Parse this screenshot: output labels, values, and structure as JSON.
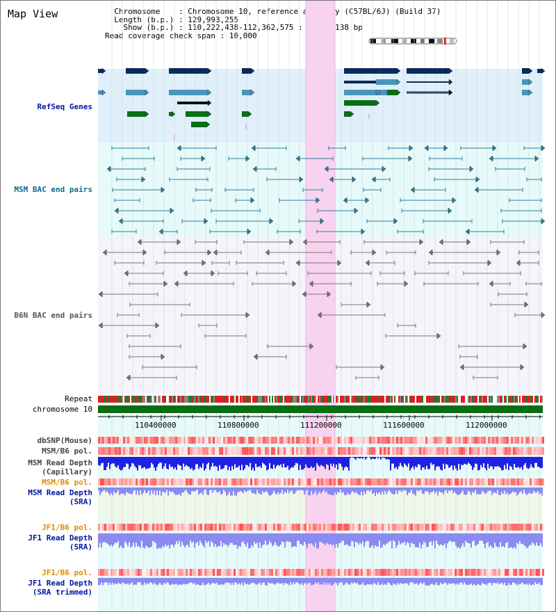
{
  "title": "Map View",
  "info": {
    "chromosome_key": "Chromosome",
    "chromosome_val": "Chromosome 10, reference assembly (C57BL/6J) (Build 37)",
    "length_key": "Length (b.p.)",
    "length_val": "129,993,255",
    "show_key": "Show (b.p.)",
    "show_val": "110,222,438-112,362,575 : 2,140,138 bp",
    "span_key": "Read coverage check span",
    "span_val": "10,000"
  },
  "tracks": {
    "refseq": "RefSeq Genes",
    "msm_bac": "MSM BAC end pairs",
    "b6n_bac": "B6N BAC end pairs",
    "repeat": "Repeat",
    "chromosome": "chromosome 10",
    "dbsnp": "dbSNP(Mouse)",
    "msm_b6_pol_1": "MSM/B6 pol.",
    "msm_depth_cap_1": "MSM Read Depth",
    "msm_depth_cap_2": "(Capillary)",
    "msm_b6_pol_2": "MSM/B6 pol.",
    "msm_depth_sra_1": "MSM Read Depth",
    "msm_depth_sra_2": "(SRA)",
    "jf1_pol_1": "JF1/B6 pol.",
    "jf1_depth_sra_1": "JF1 Read Depth",
    "jf1_depth_sra_2": "(SRA)",
    "jf1_pol_2": "JF1/B6 pol.",
    "jf1_depth_trim_1": "JF1 Read Depth",
    "jf1_depth_trim_2": "(SRA trimmed)"
  },
  "axis_ticks": [
    "110400000",
    "110800000",
    "111200000",
    "111600000",
    "112000000"
  ],
  "colors": {
    "refseq_bg": "#dff0fa",
    "msm_bg": "#e6fafa",
    "b6n_bg": "#f4f4fa",
    "highlight": "#f7d3f0",
    "navy": "#0a2a5e",
    "steel": "#4a95bd",
    "green": "#0a6e14",
    "teal": "#2e7f9c",
    "gray": "#777777",
    "label_blue": "#00169c",
    "label_teal": "#0d6b8a",
    "label_gray": "#555555",
    "label_orange": "#e08a00",
    "depth_blue": "#2020e0",
    "depth_violet": "#8a8af0"
  }
}
